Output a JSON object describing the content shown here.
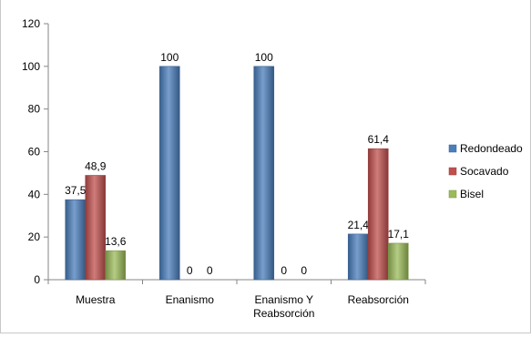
{
  "chart_data": {
    "type": "bar",
    "categories": [
      "Muestra",
      "Enanismo",
      "Enanismo Y|Reabsorción",
      "Reabsorción"
    ],
    "series": [
      {
        "name": "Redondeado",
        "values": [
          37.5,
          100,
          100,
          21.4
        ],
        "labels": [
          "37,5",
          "100",
          "100",
          "21,4"
        ],
        "color": "#4a7ebb"
      },
      {
        "name": "Socavado",
        "values": [
          48.9,
          0,
          0,
          61.4
        ],
        "labels": [
          "48,9",
          "0",
          "0",
          "61,4"
        ],
        "color": "#c0504d"
      },
      {
        "name": "Bisel",
        "values": [
          13.6,
          0,
          0,
          17.1
        ],
        "labels": [
          "13,6",
          "0",
          "0",
          "17,1"
        ],
        "color": "#9bbb59"
      }
    ],
    "yticks": [
      "0",
      "20",
      "40",
      "60",
      "80",
      "100",
      "120"
    ],
    "ylim": [
      0,
      120
    ],
    "grid": false,
    "legend_position": "right"
  }
}
